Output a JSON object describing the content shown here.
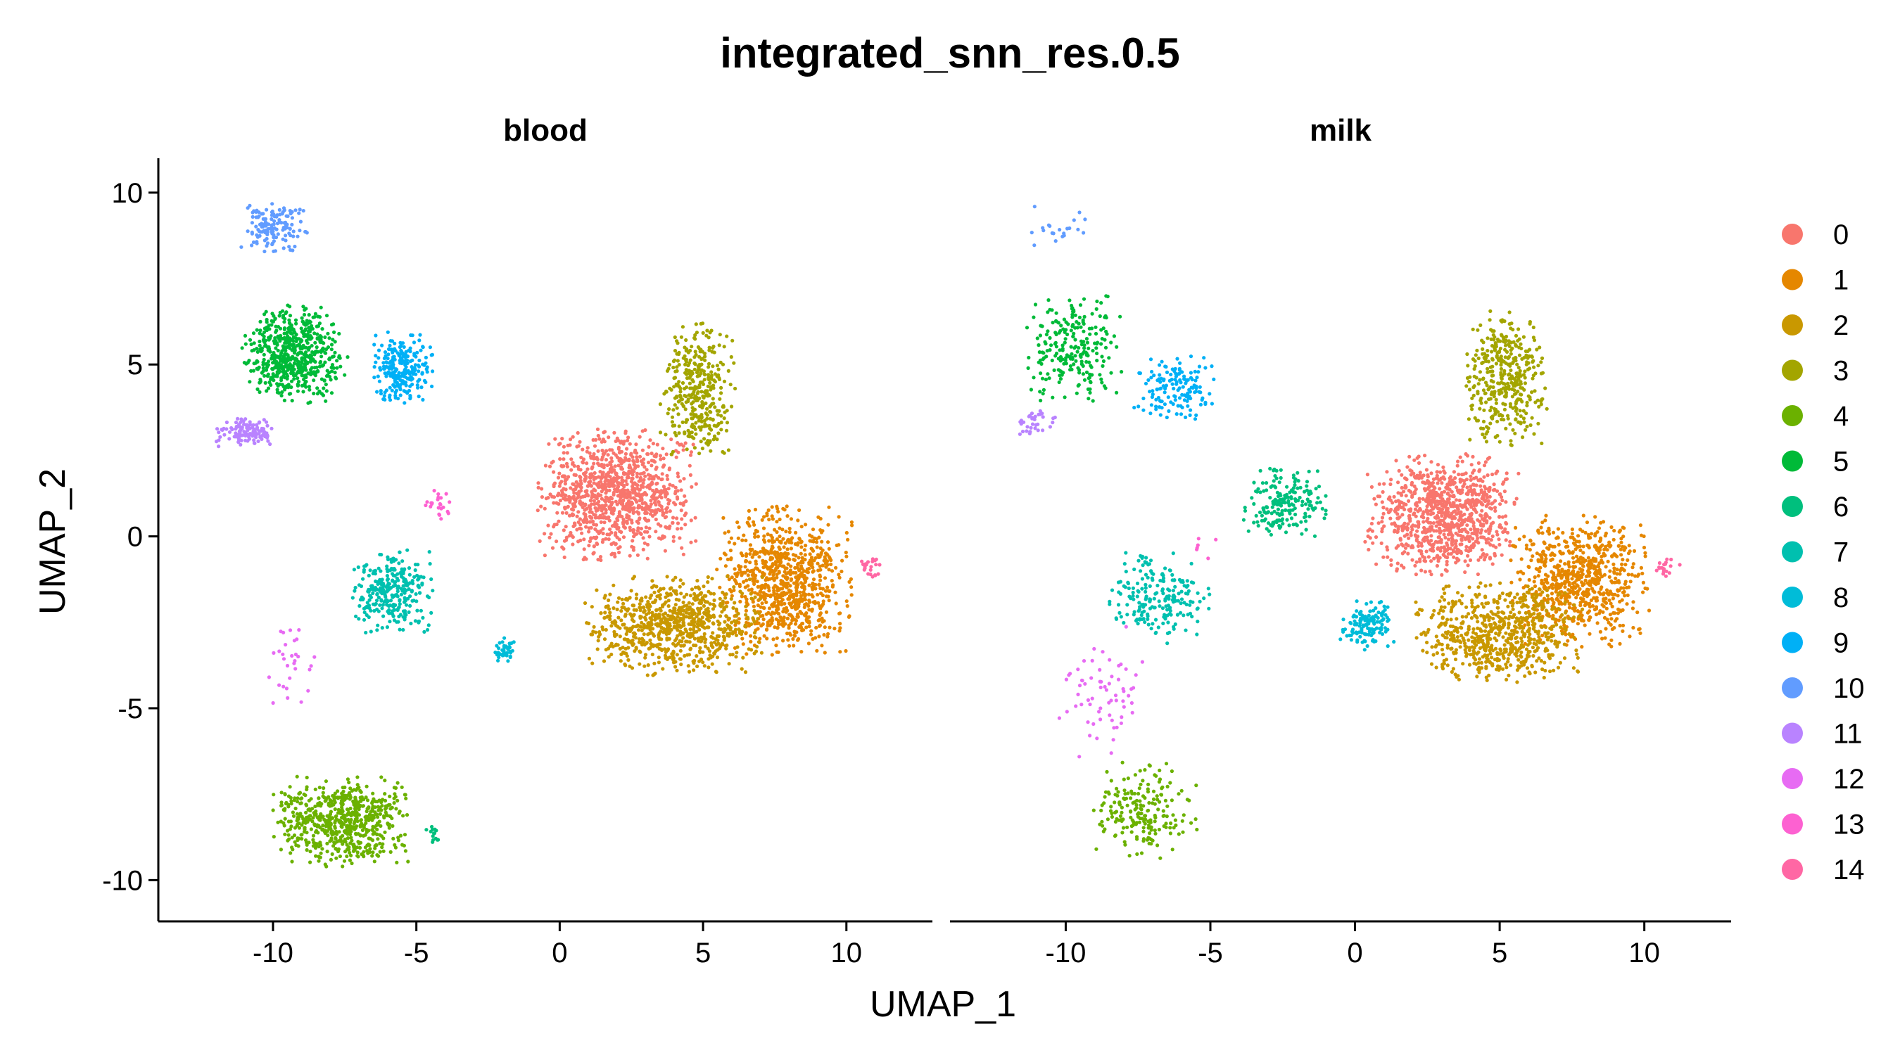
{
  "chart_data": {
    "type": "scatter",
    "title": "integrated_snn_res.0.5",
    "xlabel": "UMAP_1",
    "ylabel": "UMAP_2",
    "xlim": [
      -14,
      13
    ],
    "ylim": [
      -11.2,
      11
    ],
    "x_ticks": [
      -10,
      -5,
      0,
      5,
      10
    ],
    "y_ticks": [
      10,
      5,
      0,
      -5,
      -10
    ],
    "grid": false,
    "legend_position": "right",
    "facets": [
      "blood",
      "milk"
    ],
    "categories": [
      "0",
      "1",
      "2",
      "3",
      "4",
      "5",
      "6",
      "7",
      "8",
      "9",
      "10",
      "11",
      "12",
      "13",
      "14"
    ],
    "colors": [
      "#F8766D",
      "#E58700",
      "#C99800",
      "#A3A500",
      "#6BB100",
      "#00BA38",
      "#00BF7D",
      "#00C0AF",
      "#00BCD8",
      "#00B0F6",
      "#619CFF",
      "#B983FF",
      "#E76BF3",
      "#FD61D1",
      "#FF67A4"
    ],
    "clusters": {
      "blood": [
        {
          "cluster": "0",
          "cx": 2.0,
          "cy": 1.2,
          "sx": 2.3,
          "sy": 1.6,
          "weight": 1700
        },
        {
          "cluster": "1",
          "cx": 7.8,
          "cy": -1.3,
          "sx": 2.0,
          "sy": 1.8,
          "weight": 1400
        },
        {
          "cluster": "2",
          "cx": 4.0,
          "cy": -2.6,
          "sx": 2.6,
          "sy": 1.2,
          "weight": 1300
        },
        {
          "cluster": "3",
          "cx": 4.8,
          "cy": 4.3,
          "sx": 1.1,
          "sy": 1.7,
          "weight": 600
        },
        {
          "cluster": "4",
          "cx": -7.6,
          "cy": -8.3,
          "sx": 2.0,
          "sy": 1.1,
          "weight": 1100
        },
        {
          "cluster": "5",
          "cx": -9.3,
          "cy": 5.3,
          "sx": 1.5,
          "sy": 1.2,
          "weight": 1000
        },
        {
          "cluster": "6",
          "cx": -4.4,
          "cy": -8.6,
          "sx": 0.3,
          "sy": 0.3,
          "weight": 25
        },
        {
          "cluster": "7",
          "cx": -5.8,
          "cy": -1.6,
          "sx": 1.2,
          "sy": 1.0,
          "weight": 500
        },
        {
          "cluster": "8",
          "cx": -1.9,
          "cy": -3.3,
          "sx": 0.3,
          "sy": 0.3,
          "weight": 70
        },
        {
          "cluster": "9",
          "cx": -5.5,
          "cy": 4.9,
          "sx": 0.9,
          "sy": 0.9,
          "weight": 420
        },
        {
          "cluster": "10",
          "cx": -10.0,
          "cy": 9.0,
          "sx": 1.0,
          "sy": 0.6,
          "weight": 230
        },
        {
          "cluster": "11",
          "cx": -10.9,
          "cy": 3.0,
          "sx": 0.9,
          "sy": 0.35,
          "weight": 200
        },
        {
          "cluster": "12",
          "cx": -9.5,
          "cy": -3.5,
          "sx": 0.8,
          "sy": 1.2,
          "weight": 50
        },
        {
          "cluster": "13",
          "cx": -4.2,
          "cy": 0.9,
          "sx": 0.4,
          "sy": 0.4,
          "weight": 40
        },
        {
          "cluster": "14",
          "cx": 10.9,
          "cy": -0.9,
          "sx": 0.4,
          "sy": 0.3,
          "weight": 40
        }
      ],
      "milk": [
        {
          "cluster": "0",
          "cx": 3.0,
          "cy": 0.6,
          "sx": 2.2,
          "sy": 1.5,
          "weight": 1500
        },
        {
          "cluster": "1",
          "cx": 7.8,
          "cy": -1.3,
          "sx": 2.0,
          "sy": 1.6,
          "weight": 1200
        },
        {
          "cluster": "2",
          "cx": 5.0,
          "cy": -2.8,
          "sx": 2.4,
          "sy": 1.2,
          "weight": 1100
        },
        {
          "cluster": "3",
          "cx": 5.2,
          "cy": 4.6,
          "sx": 1.2,
          "sy": 1.7,
          "weight": 650
        },
        {
          "cluster": "4",
          "cx": -7.4,
          "cy": -8.0,
          "sx": 1.6,
          "sy": 1.2,
          "weight": 330
        },
        {
          "cluster": "5",
          "cx": -9.7,
          "cy": 5.5,
          "sx": 1.5,
          "sy": 1.3,
          "weight": 380
        },
        {
          "cluster": "6",
          "cx": -2.4,
          "cy": 1.0,
          "sx": 1.2,
          "sy": 0.9,
          "weight": 320
        },
        {
          "cluster": "7",
          "cx": -6.8,
          "cy": -1.8,
          "sx": 1.5,
          "sy": 1.1,
          "weight": 350
        },
        {
          "cluster": "8",
          "cx": 0.4,
          "cy": -2.6,
          "sx": 0.8,
          "sy": 0.6,
          "weight": 220
        },
        {
          "cluster": "9",
          "cx": -6.2,
          "cy": 4.3,
          "sx": 1.2,
          "sy": 0.8,
          "weight": 240
        },
        {
          "cluster": "10",
          "cx": -10.2,
          "cy": 9.0,
          "sx": 1.3,
          "sy": 0.6,
          "weight": 35
        },
        {
          "cluster": "11",
          "cx": -11.0,
          "cy": 3.3,
          "sx": 0.7,
          "sy": 0.4,
          "weight": 55
        },
        {
          "cluster": "12",
          "cx": -8.8,
          "cy": -4.5,
          "sx": 1.3,
          "sy": 1.6,
          "weight": 110
        },
        {
          "cluster": "13",
          "cx": -5.4,
          "cy": -0.4,
          "sx": 0.5,
          "sy": 0.5,
          "weight": 10
        },
        {
          "cluster": "14",
          "cx": 10.8,
          "cy": -0.9,
          "sx": 0.4,
          "sy": 0.3,
          "weight": 35
        }
      ]
    }
  }
}
